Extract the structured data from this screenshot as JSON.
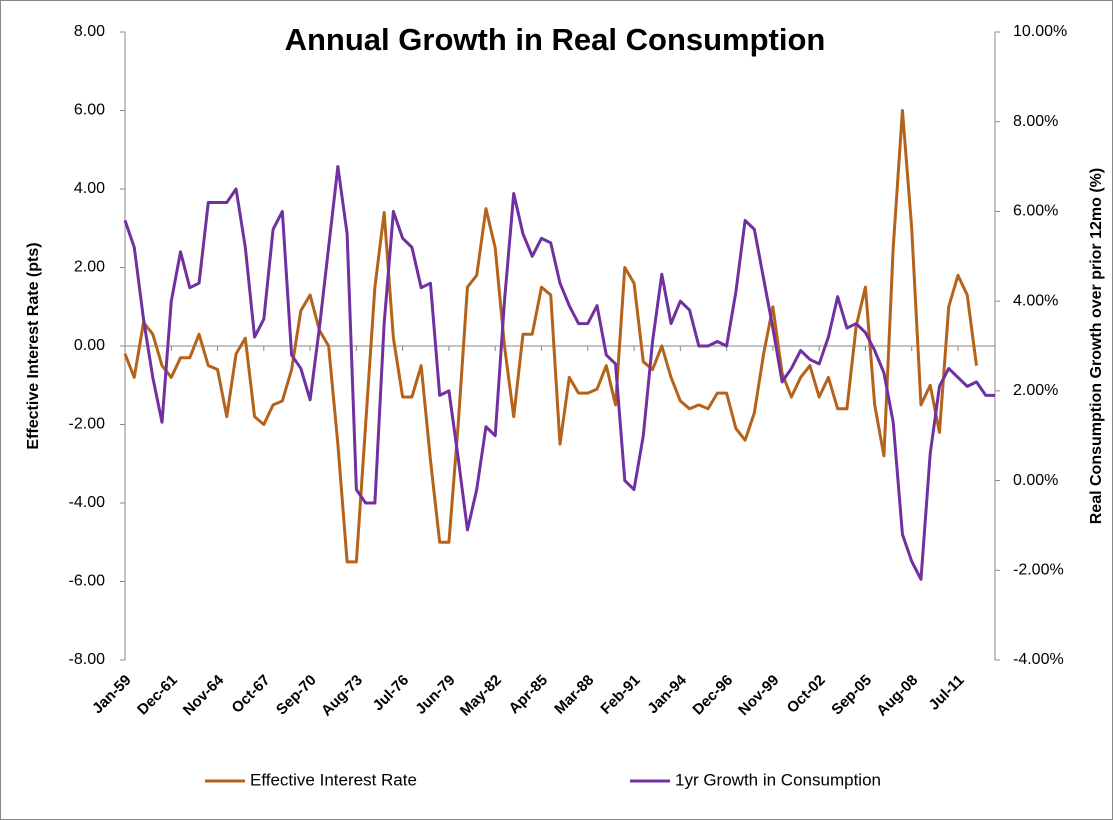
{
  "chart_data": {
    "type": "line",
    "title": "Annual Growth in Real Consumption",
    "y_label": "Effective Interest Rate (pts)",
    "y2_label": "Real Consumption Growth over prior 12mo (%)",
    "legend": "bottom",
    "categories": [
      "Jan-59",
      null,
      null,
      null,
      null,
      "Dec-61",
      null,
      null,
      null,
      null,
      "Nov-64",
      null,
      null,
      null,
      null,
      "Oct-67",
      null,
      null,
      null,
      null,
      "Sep-70",
      null,
      null,
      null,
      null,
      "Aug-73",
      null,
      null,
      null,
      null,
      "Jul-76",
      null,
      null,
      null,
      null,
      "Jun-79",
      null,
      null,
      null,
      null,
      "May-82",
      null,
      null,
      null,
      null,
      "Apr-85",
      null,
      null,
      null,
      null,
      "Mar-88",
      null,
      null,
      null,
      null,
      "Feb-91",
      null,
      null,
      null,
      null,
      "Jan-94",
      null,
      null,
      null,
      null,
      "Dec-96",
      null,
      null,
      null,
      null,
      "Nov-99",
      null,
      null,
      null,
      null,
      "Oct-02",
      null,
      null,
      null,
      null,
      "Sep-05",
      null,
      null,
      null,
      null,
      "Aug-08",
      null,
      null,
      null,
      null,
      "Jul-11",
      null,
      null,
      null,
      null
    ],
    "series": [
      {
        "name": "Effective Interest Rate",
        "color": "#b5621b",
        "axis": "y",
        "values": [
          -0.2,
          -0.8,
          0.6,
          0.3,
          -0.5,
          -0.8,
          -0.3,
          -0.3,
          0.3,
          -0.5,
          -0.6,
          -1.8,
          -0.2,
          0.2,
          -1.8,
          -2.0,
          -1.5,
          -1.4,
          -0.6,
          0.9,
          1.3,
          0.4,
          0.0,
          -2.5,
          -5.5,
          -5.5,
          -2.0,
          1.5,
          3.4,
          0.2,
          -1.3,
          -1.3,
          -0.5,
          -2.9,
          -5.0,
          -5.0,
          -2.0,
          1.5,
          1.8,
          3.5,
          2.5,
          0.0,
          -1.8,
          0.3,
          0.3,
          1.5,
          1.3,
          -2.5,
          -0.8,
          -1.2,
          -1.2,
          -1.1,
          -0.5,
          -1.5,
          2.0,
          1.6,
          -0.4,
          -0.6,
          0.0,
          -0.8,
          -1.4,
          -1.6,
          -1.5,
          -1.6,
          -1.2,
          -1.2,
          -2.1,
          -2.4,
          -1.7,
          -0.2,
          1.0,
          -0.7,
          -1.3,
          -0.8,
          -0.5,
          -1.3,
          -0.8,
          -1.6,
          -1.6,
          0.5,
          1.5,
          -1.5,
          -2.8,
          2.5,
          6.0,
          3.0,
          -1.5,
          -1.0,
          -2.2,
          1.0,
          1.8,
          1.3,
          -0.5,
          null,
          null
        ]
      },
      {
        "name": "1yr Growth in Consumption",
        "color": "#7030a0",
        "axis": "y2",
        "values": [
          5.8,
          5.2,
          3.6,
          2.3,
          1.3,
          4.0,
          5.1,
          4.3,
          4.4,
          6.2,
          6.2,
          6.2,
          6.5,
          5.2,
          3.2,
          3.6,
          5.6,
          6.0,
          2.8,
          2.5,
          1.8,
          3.4,
          5.2,
          7.0,
          5.5,
          -0.2,
          -0.5,
          -0.5,
          3.5,
          6.0,
          5.4,
          5.2,
          4.3,
          4.4,
          1.9,
          2.0,
          0.5,
          -1.1,
          -0.2,
          1.2,
          1.0,
          4.0,
          6.4,
          5.5,
          5.0,
          5.4,
          5.3,
          4.4,
          3.9,
          3.5,
          3.5,
          3.9,
          2.8,
          2.6,
          0.0,
          -0.2,
          1.0,
          3.1,
          4.6,
          3.5,
          4.0,
          3.8,
          3.0,
          3.0,
          3.1,
          3.0,
          4.2,
          5.8,
          5.6,
          4.5,
          3.4,
          2.2,
          2.5,
          2.9,
          2.7,
          2.6,
          3.2,
          4.1,
          3.4,
          3.5,
          3.3,
          2.9,
          2.4,
          1.3,
          -1.2,
          -1.8,
          -2.2,
          0.6,
          2.1,
          2.5,
          2.3,
          2.1,
          2.2,
          1.9,
          1.9
        ]
      }
    ],
    "ylim": [
      -8,
      8
    ],
    "yticks": [
      {
        "value": -8,
        "label": "-8.00"
      },
      {
        "value": -6,
        "label": "-6.00"
      },
      {
        "value": -4,
        "label": "-4.00"
      },
      {
        "value": -2,
        "label": "-2.00"
      },
      {
        "value": 0,
        "label": "0.00"
      },
      {
        "value": 2,
        "label": "2.00"
      },
      {
        "value": 4,
        "label": "4.00"
      },
      {
        "value": 6,
        "label": "6.00"
      },
      {
        "value": 8,
        "label": "8.00"
      }
    ],
    "y2lim": [
      -4,
      10
    ],
    "y2ticks": [
      {
        "value": -4,
        "label": "-4.00%"
      },
      {
        "value": -2,
        "label": "-2.00%"
      },
      {
        "value": 0,
        "label": "0.00%"
      },
      {
        "value": 2,
        "label": "2.00%"
      },
      {
        "value": 4,
        "label": "4.00%"
      },
      {
        "value": 6,
        "label": "6.00%"
      },
      {
        "value": 8,
        "label": "8.00%"
      },
      {
        "value": 10,
        "label": "10.00%"
      }
    ]
  }
}
